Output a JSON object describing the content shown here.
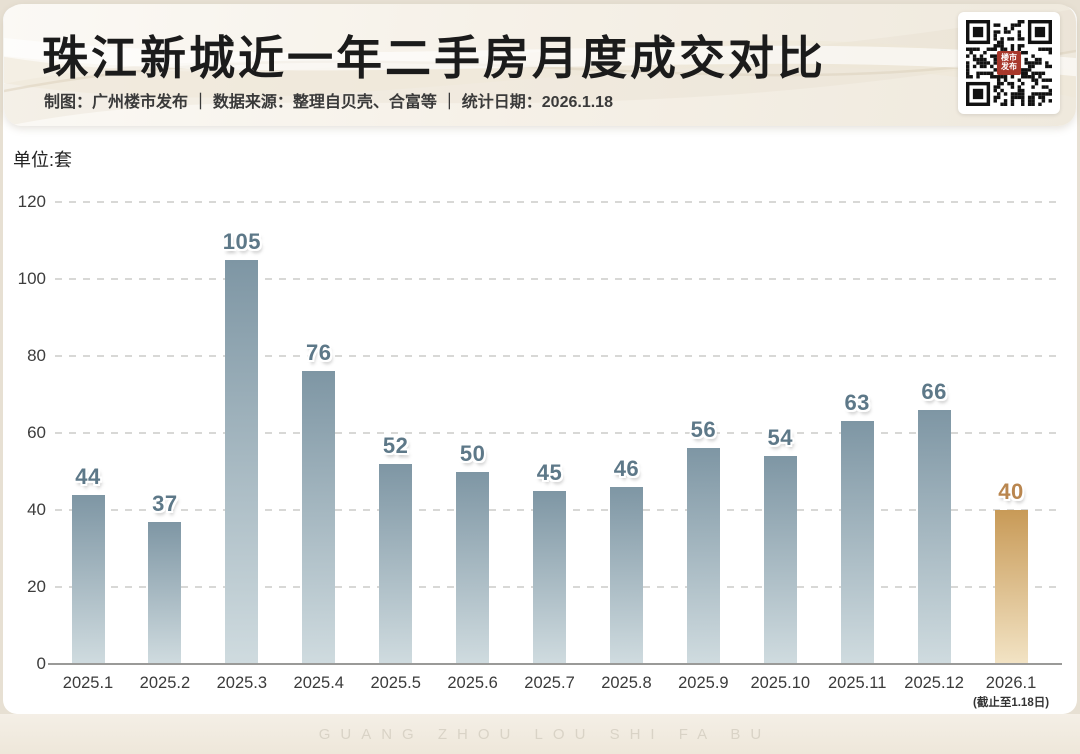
{
  "header": {
    "title": "珠江新城近一年二手房月度成交对比",
    "subtitle": "制图：广州楼市发布 ｜ 数据来源：整理自贝壳、合富等 ｜ 统计日期：2026.1.18",
    "qr": {
      "center_label_line1": "楼市",
      "center_label_line2": "发布",
      "badge_color": "#a8382c"
    }
  },
  "chart_data": {
    "type": "bar",
    "title": "珠江新城近一年二手房月度成交对比",
    "unit_label": "单位:套",
    "categories": [
      "2025.1",
      "2025.2",
      "2025.3",
      "2025.4",
      "2025.5",
      "2025.6",
      "2025.7",
      "2025.8",
      "2025.9",
      "2025.10",
      "2025.11",
      "2025.12",
      "2026.1"
    ],
    "values": [
      44,
      37,
      105,
      76,
      52,
      50,
      45,
      46,
      56,
      54,
      63,
      66,
      40
    ],
    "last_category_note": "(截止至1.18日)",
    "ylim": [
      0,
      120
    ],
    "yticks": [
      0,
      20,
      40,
      60,
      80,
      100,
      120
    ],
    "grid": true,
    "legend": null,
    "highlight_index": 12,
    "colors": {
      "bar_top": "#7e96a4",
      "bar_bottom": "#cfdbdf",
      "bar_highlight_top": "#c89a57",
      "bar_highlight_bottom": "#f2e3c4",
      "value_label": "#5d7888",
      "value_label_highlight": "#b9864f",
      "gridline": "#d8d8d6",
      "baseline": "#9a9a98"
    }
  },
  "footer": {
    "watermark": "GUANG ZHOU LOU SHI FA BU"
  }
}
